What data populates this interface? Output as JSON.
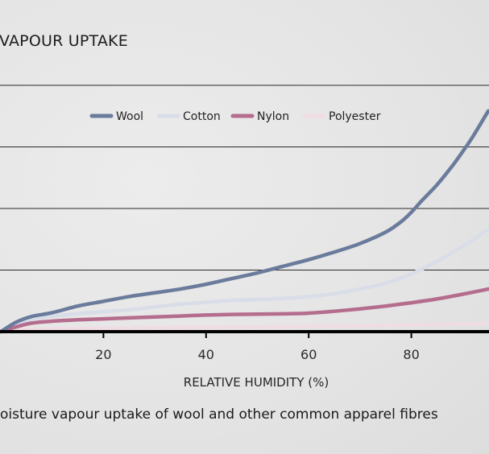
{
  "title": "VAPOUR UPTAKE",
  "caption": "oisture vapour uptake of wool and other common apparel fibres",
  "colors": {
    "background": "#e6e6e6",
    "wool": "#6a7b9b",
    "cotton": "#d8dde8",
    "nylon": "#b56d8e",
    "polyester": "#f0dce4",
    "gridline": "#2a2a2a",
    "axis": "#000000"
  },
  "chart_data": {
    "type": "line",
    "xlabel": "RELATIVE HUMIDITY (%)",
    "ylabel": "",
    "xlim": [
      0,
      95
    ],
    "ylim": [
      0,
      26
    ],
    "x_ticks": [
      20,
      40,
      60,
      80
    ],
    "y_gridlines": [
      0,
      6.5,
      13,
      19.5,
      26
    ],
    "grid": true,
    "legend_position": "top-center",
    "series": [
      {
        "name": "Wool",
        "color": "#6a7b9b",
        "x": [
          0,
          3,
          6,
          10,
          15,
          20,
          25,
          30,
          35,
          40,
          45,
          50,
          55,
          60,
          65,
          70,
          75,
          78,
          80,
          82,
          85,
          88,
          90,
          92,
          95
        ],
        "y": [
          0,
          1.0,
          1.6,
          2.0,
          2.7,
          3.2,
          3.7,
          4.1,
          4.5,
          5.0,
          5.6,
          6.2,
          6.9,
          7.6,
          8.4,
          9.3,
          10.5,
          11.6,
          12.6,
          13.8,
          15.5,
          17.5,
          19.0,
          20.6,
          23.3
        ]
      },
      {
        "name": "Cotton",
        "color": "#d8dde8",
        "x": [
          0,
          3,
          6,
          10,
          15,
          20,
          25,
          30,
          35,
          40,
          45,
          50,
          55,
          60,
          65,
          70,
          75,
          80,
          85,
          90,
          95
        ],
        "y": [
          0,
          0.8,
          1.3,
          1.6,
          1.9,
          2.1,
          2.3,
          2.6,
          2.9,
          3.1,
          3.3,
          3.4,
          3.5,
          3.7,
          4.0,
          4.5,
          5.1,
          6.1,
          7.4,
          9.0,
          10.8
        ]
      },
      {
        "name": "Nylon",
        "color": "#b56d8e",
        "x": [
          0,
          3,
          6,
          10,
          15,
          20,
          25,
          30,
          35,
          40,
          45,
          50,
          55,
          60,
          65,
          70,
          75,
          80,
          85,
          90,
          95
        ],
        "y": [
          0,
          0.5,
          0.9,
          1.1,
          1.25,
          1.35,
          1.45,
          1.55,
          1.65,
          1.75,
          1.82,
          1.85,
          1.88,
          1.95,
          2.15,
          2.4,
          2.7,
          3.05,
          3.45,
          3.95,
          4.5
        ]
      },
      {
        "name": "Polyester",
        "color": "#f0dce4",
        "x": [
          0,
          5,
          10,
          20,
          30,
          40,
          50,
          60,
          70,
          80,
          90,
          95
        ],
        "y": [
          0,
          0.2,
          0.3,
          0.35,
          0.4,
          0.45,
          0.5,
          0.55,
          0.6,
          0.7,
          0.8,
          0.9
        ]
      }
    ]
  }
}
